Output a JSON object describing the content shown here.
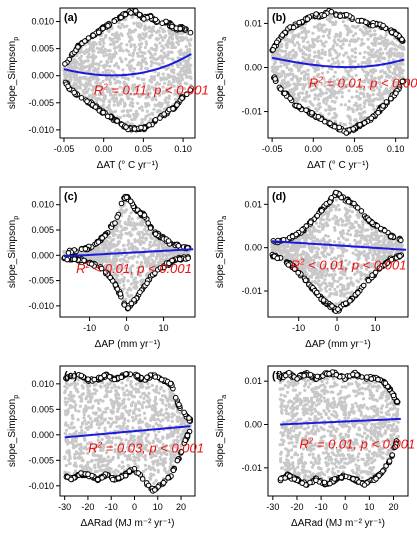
{
  "chart_data": [
    {
      "type": "scatter",
      "panel_label": "(a)",
      "ylabel_main": "slope_Simpson",
      "ylabel_sub": "p",
      "xlabel": "ΔAT (° C yr⁻¹)",
      "xlim": [
        -0.055,
        0.115
      ],
      "ylim": [
        -0.0115,
        0.0125
      ],
      "xticks": [
        -0.05,
        0.0,
        0.05,
        0.1
      ],
      "xtick_labels": [
        "-0.05",
        "0.00",
        "0.05",
        "0.10"
      ],
      "yticks": [
        -0.01,
        -0.005,
        0.0,
        0.005,
        0.01
      ],
      "ytick_labels": [
        "-0.010",
        "-0.005",
        "0.000",
        "0.005",
        "0.010"
      ],
      "fit_line": {
        "x": [
          -0.05,
          0.0,
          0.05,
          0.11
        ],
        "y": [
          0.0012,
          0.0001,
          0.0006,
          0.004
        ]
      },
      "annotation": {
        "r2": "0.11",
        "p": "< 0.001",
        "x": 0.06,
        "y": -0.0035
      },
      "envelope": {
        "x": [
          -0.05,
          -0.04,
          -0.03,
          -0.02,
          -0.01,
          0.0,
          0.01,
          0.02,
          0.03,
          0.04,
          0.05,
          0.06,
          0.07,
          0.08,
          0.09,
          0.1,
          0.11
        ],
        "upper": [
          0.002,
          0.004,
          0.006,
          0.007,
          0.008,
          0.009,
          0.01,
          0.011,
          0.012,
          0.012,
          0.011,
          0.011,
          0.01,
          0.01,
          0.009,
          0.009,
          0.008
        ],
        "lower": [
          -0.001,
          -0.003,
          -0.004,
          -0.005,
          -0.006,
          -0.007,
          -0.008,
          -0.009,
          -0.01,
          -0.01,
          -0.01,
          -0.009,
          -0.008,
          -0.007,
          -0.006,
          -0.004,
          -0.003
        ]
      }
    },
    {
      "type": "scatter",
      "panel_label": "(b)",
      "ylabel_main": "slope_Simpson",
      "ylabel_sub": "a",
      "xlabel": "ΔAT (° C yr⁻¹)",
      "xlim": [
        -0.055,
        0.115
      ],
      "ylim": [
        -0.016,
        0.0135
      ],
      "xticks": [
        -0.05,
        0.0,
        0.05,
        0.1
      ],
      "xtick_labels": [
        "-0.05",
        "0.00",
        "0.05",
        "0.10"
      ],
      "yticks": [
        -0.01,
        0.0,
        0.01
      ],
      "ytick_labels": [
        "-0.01",
        "0.00",
        "0.01"
      ],
      "fit_line": {
        "x": [
          -0.05,
          0.0,
          0.05,
          0.11
        ],
        "y": [
          0.0022,
          0.0006,
          0.0001,
          0.0018
        ]
      },
      "annotation": {
        "r2": "0.01",
        "p": "< 0.001",
        "x": 0.065,
        "y": -0.0045
      },
      "envelope": {
        "x": [
          -0.05,
          -0.04,
          -0.03,
          -0.02,
          -0.01,
          0.0,
          0.01,
          0.02,
          0.03,
          0.04,
          0.05,
          0.06,
          0.07,
          0.08,
          0.09,
          0.1,
          0.11
        ],
        "upper": [
          0.004,
          0.007,
          0.009,
          0.01,
          0.011,
          0.012,
          0.012,
          0.013,
          0.012,
          0.012,
          0.011,
          0.011,
          0.01,
          0.01,
          0.009,
          0.008,
          0.006
        ],
        "lower": [
          -0.002,
          -0.005,
          -0.007,
          -0.009,
          -0.01,
          -0.011,
          -0.012,
          -0.013,
          -0.014,
          -0.015,
          -0.014,
          -0.013,
          -0.012,
          -0.01,
          -0.008,
          -0.006,
          -0.003
        ]
      }
    },
    {
      "type": "scatter",
      "panel_label": "(c)",
      "ylabel_main": "slope_Simpson",
      "ylabel_sub": "p",
      "xlabel": "ΔAP (mm yr⁻¹)",
      "xlim": [
        -18,
        18.5
      ],
      "ylim": [
        -0.0122,
        0.0135
      ],
      "xticks": [
        -10,
        0,
        10
      ],
      "xtick_labels": [
        "-10",
        "0",
        "10"
      ],
      "yticks": [
        -0.01,
        -0.005,
        0.0,
        0.005,
        0.01
      ],
      "ytick_labels": [
        "-0.010",
        "-0.005",
        "0.000",
        "0.005",
        "0.010"
      ],
      "fit_line": {
        "x": [
          -17,
          18
        ],
        "y": [
          -0.0002,
          0.0012
        ]
      },
      "annotation": {
        "r2": "< 0.01",
        "p": "< 0.001",
        "x": 2.0,
        "y": -0.0035
      },
      "envelope": {
        "x": [
          -17,
          -14,
          -11,
          -8,
          -5,
          -3,
          -1,
          0,
          1,
          3,
          5,
          7,
          9,
          11,
          14,
          17
        ],
        "upper": [
          0.0008,
          0.001,
          0.0015,
          0.0025,
          0.005,
          0.007,
          0.011,
          0.012,
          0.011,
          0.009,
          0.008,
          0.005,
          0.004,
          0.003,
          0.002,
          0.0015
        ],
        "lower": [
          -0.0008,
          -0.001,
          -0.0015,
          -0.0022,
          -0.004,
          -0.006,
          -0.009,
          -0.011,
          -0.01,
          -0.0085,
          -0.006,
          -0.004,
          -0.003,
          -0.002,
          -0.001,
          -0.0006
        ]
      }
    },
    {
      "type": "scatter",
      "panel_label": "(d)",
      "ylabel_main": "slope_Simpson",
      "ylabel_sub": "a",
      "xlabel": "ΔAP (mm yr⁻¹)",
      "xlim": [
        -18,
        18.5
      ],
      "ylim": [
        -0.016,
        0.014
      ],
      "xticks": [
        -10,
        0,
        10
      ],
      "xtick_labels": [
        "-10",
        "0",
        "10"
      ],
      "yticks": [
        -0.01,
        0.0,
        0.01
      ],
      "ytick_labels": [
        "-0.01",
        "0.00",
        "0.01"
      ],
      "fit_line": {
        "x": [
          -17,
          18
        ],
        "y": [
          0.0015,
          -0.0005
        ]
      },
      "annotation": {
        "r2": "< 0.01",
        "p": "< 0.001",
        "x": 3.0,
        "y": -0.005
      },
      "envelope": {
        "x": [
          -17,
          -14,
          -11,
          -8,
          -5,
          -3,
          -1,
          0,
          1,
          3,
          5,
          7,
          9,
          11,
          14,
          17
        ],
        "upper": [
          0.0015,
          0.002,
          0.003,
          0.005,
          0.008,
          0.01,
          0.012,
          0.013,
          0.012,
          0.011,
          0.01,
          0.008,
          0.006,
          0.005,
          0.003,
          0.002
        ],
        "lower": [
          -0.002,
          -0.003,
          -0.005,
          -0.008,
          -0.011,
          -0.013,
          -0.014,
          -0.015,
          -0.014,
          -0.013,
          -0.011,
          -0.009,
          -0.007,
          -0.005,
          -0.003,
          -0.002
        ]
      }
    },
    {
      "type": "scatter",
      "panel_label": "(e)",
      "ylabel_main": "slope_Simpson",
      "ylabel_sub": "p",
      "xlabel": "ΔARad (MJ m⁻² yr⁻¹)",
      "xlim": [
        -32,
        26
      ],
      "ylim": [
        -0.012,
        0.0135
      ],
      "xticks": [
        -30,
        -20,
        -10,
        0,
        10,
        20
      ],
      "xtick_labels": [
        "-30",
        "-20",
        "-10",
        "0",
        "10",
        "20"
      ],
      "yticks": [
        -0.01,
        -0.005,
        0.0,
        0.005,
        0.01
      ],
      "ytick_labels": [
        "-0.010",
        "-0.005",
        "0.000",
        "0.005",
        "0.010"
      ],
      "fit_line": {
        "x": [
          -30,
          24
        ],
        "y": [
          -0.0005,
          0.0017
        ]
      },
      "annotation": {
        "r2": "0.03",
        "p": "< 0.001",
        "x": 5.0,
        "y": -0.0035
      },
      "envelope": {
        "x": [
          -30,
          -27,
          -24,
          -20,
          -16,
          -12,
          -8,
          -4,
          0,
          4,
          8,
          12,
          16,
          19,
          22,
          24
        ],
        "upper": [
          0.011,
          0.012,
          0.012,
          0.011,
          0.011,
          0.012,
          0.011,
          0.012,
          0.012,
          0.011,
          0.012,
          0.011,
          0.01,
          0.006,
          0.004,
          0.003
        ],
        "lower": [
          -0.008,
          -0.009,
          -0.008,
          -0.008,
          -0.009,
          -0.008,
          -0.009,
          -0.008,
          -0.007,
          -0.009,
          -0.011,
          -0.01,
          -0.008,
          -0.005,
          -0.001,
          0.0005
        ]
      }
    },
    {
      "type": "scatter",
      "panel_label": "(f)",
      "ylabel_main": "slope_Simpson",
      "ylabel_sub": "a",
      "xlabel": "ΔARad (MJ m⁻² yr⁻¹)",
      "xlim": [
        -32,
        26
      ],
      "ylim": [
        -0.0165,
        0.0135
      ],
      "xticks": [
        -30,
        -20,
        -10,
        0,
        10,
        20
      ],
      "xtick_labels": [
        "-30",
        "-20",
        "-10",
        "0",
        "10",
        "20"
      ],
      "yticks": [
        -0.01,
        0.0,
        0.01
      ],
      "ytick_labels": [
        "-0.01",
        "0.00",
        "0.01"
      ],
      "fit_line": {
        "x": [
          -27,
          23
        ],
        "y": [
          0.0,
          0.0013
        ]
      },
      "annotation": {
        "r2": "0.01",
        "p": "< 0.001",
        "x": 5.0,
        "y": -0.0055
      },
      "envelope": {
        "x": [
          -27,
          -24,
          -20,
          -16,
          -12,
          -8,
          -4,
          0,
          4,
          8,
          12,
          16,
          19,
          22
        ],
        "upper": [
          0.011,
          0.012,
          0.011,
          0.012,
          0.011,
          0.012,
          0.012,
          0.011,
          0.012,
          0.011,
          0.011,
          0.01,
          0.008,
          0.005
        ],
        "lower": [
          -0.013,
          -0.012,
          -0.013,
          -0.014,
          -0.013,
          -0.014,
          -0.013,
          -0.012,
          -0.013,
          -0.014,
          -0.013,
          -0.011,
          -0.008,
          -0.003
        ]
      }
    }
  ],
  "colors": {
    "points": "#c8c8c8",
    "outline_points": "#000000",
    "fit_line": "#1a1adb",
    "annotation": "#ee1111"
  }
}
